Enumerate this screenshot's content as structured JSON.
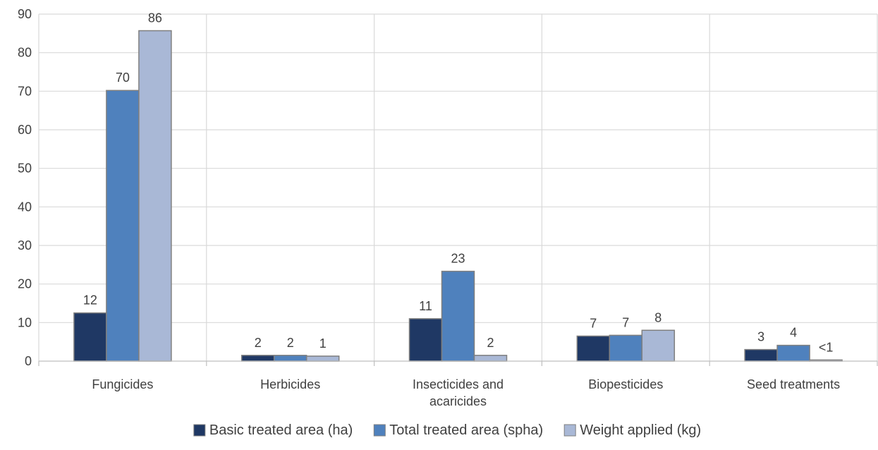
{
  "chart_data": {
    "type": "bar",
    "categories": [
      "Fungicides",
      "Herbicides",
      "Insecticides and acaricides",
      "Biopesticides",
      "Seed treatments"
    ],
    "category_lines": [
      [
        "Fungicides"
      ],
      [
        "Herbicides"
      ],
      [
        "Insecticides and",
        "acaricides"
      ],
      [
        "Biopesticides"
      ],
      [
        "Seed treatments"
      ]
    ],
    "series": [
      {
        "name": "Basic treated area (ha)",
        "color": "#1f3864",
        "values": [
          12.5,
          1.5,
          11,
          6.5,
          3
        ],
        "labels": [
          "12",
          "2",
          "11",
          "7",
          "3"
        ]
      },
      {
        "name": "Total treated area (spha)",
        "color": "#4f81bd",
        "values": [
          70.2,
          1.5,
          23.3,
          6.7,
          4.1
        ],
        "labels": [
          "70",
          "2",
          "23",
          "7",
          "4"
        ]
      },
      {
        "name": "Weight applied (kg)",
        "color": "#a9b8d6",
        "values": [
          85.7,
          1.3,
          1.5,
          8,
          0.3
        ],
        "labels": [
          "86",
          "1",
          "2",
          "8",
          "<1"
        ]
      }
    ],
    "ylim": [
      0,
      90
    ],
    "yticks": [
      0,
      10,
      20,
      30,
      40,
      50,
      60,
      70,
      80,
      90
    ],
    "grid": true,
    "legend_position": "bottom",
    "title": "",
    "xlabel": "",
    "ylabel": ""
  }
}
